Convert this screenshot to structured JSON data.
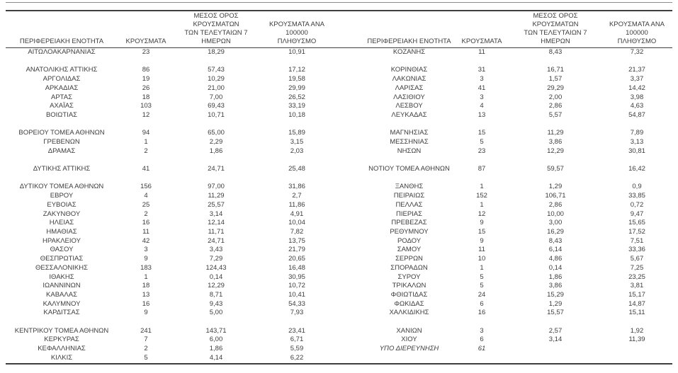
{
  "document": {
    "language": "el",
    "kind": "regional-cases-report-table"
  },
  "colors": {
    "text": "#3d3d3d",
    "rule": "#3f3f3f",
    "rule_light": "#8c8c8c",
    "background": "#ffffff"
  },
  "table": {
    "headers": {
      "region": "ΠΕΡΙΦΕΡΕΙΑΚΗ ΕΝΟΤΗΤΑ",
      "cases": "ΚΡΟΥΣΜΑΤΑ",
      "avg7": "ΜΕΣΟΣ ΟΡΟΣ ΚΡΟΥΣΜΑΤΩΝ\nΤΩΝ ΤΕΛΕΥΤΑΙΩΝ 7\nΗΜΕΡΩΝ",
      "per100k": "ΚΡΟΥΣΜΑΤΑ ΑΝΑ 100000\nΠΛΗΘΥΣΜΟ"
    },
    "rows": [
      [
        "ΑΙΤΩΛΟΑΚΑΡΝΑΝΙΑΣ",
        "23",
        "18,29",
        "10,91",
        "ΚΟΖΑΝΗΣ",
        "11",
        "8,43",
        "7,32"
      ],
      [
        "",
        "",
        "",
        "",
        "",
        "",
        "",
        ""
      ],
      [
        "ΑΝΑΤΟΛΙΚΗΣ ΑΤΤΙΚΗΣ",
        "86",
        "57,43",
        "17,12",
        "ΚΟΡΙΝΘΙΑΣ",
        "31",
        "16,71",
        "21,37"
      ],
      [
        "ΑΡΓΟΛΙΔΑΣ",
        "19",
        "10,29",
        "19,58",
        "ΛΑΚΩΝΙΑΣ",
        "3",
        "1,57",
        "3,37"
      ],
      [
        "ΑΡΚΑΔΙΑΣ",
        "26",
        "21,00",
        "29,99",
        "ΛΑΡΙΣΑΣ",
        "41",
        "29,29",
        "14,42"
      ],
      [
        "ΑΡΤΑΣ",
        "18",
        "7,00",
        "26,52",
        "ΛΑΣΙΘΙΟΥ",
        "3",
        "2,00",
        "3,98"
      ],
      [
        "ΑΧΑΪΑΣ",
        "103",
        "69,43",
        "33,19",
        "ΛΕΣΒΟΥ",
        "4",
        "2,86",
        "4,63"
      ],
      [
        "ΒΟΙΩΤΙΑΣ",
        "12",
        "10,71",
        "10,18",
        "ΛΕΥΚΑΔΑΣ",
        "13",
        "5,57",
        "54,87"
      ],
      [
        "",
        "",
        "",
        "",
        "",
        "",
        "",
        ""
      ],
      [
        "ΒΟΡΕΙΟΥ ΤΟΜΕΑ ΑΘΗΝΩΝ",
        "94",
        "65,00",
        "15,89",
        "ΜΑΓΝΗΣΙΑΣ",
        "15",
        "11,29",
        "7,89"
      ],
      [
        "ΓΡΕΒΕΝΩΝ",
        "1",
        "2,29",
        "3,15",
        "ΜΕΣΣΗΝΙΑΣ",
        "5",
        "3,86",
        "3,13"
      ],
      [
        "ΔΡΑΜΑΣ",
        "2",
        "1,86",
        "2,03",
        "ΝΗΣΩΝ",
        "23",
        "12,29",
        "30,81"
      ],
      [
        "",
        "",
        "",
        "",
        "",
        "",
        "",
        ""
      ],
      [
        "ΔΥΤΙΚΗΣ ΑΤΤΙΚΗΣ",
        "41",
        "24,71",
        "25,48",
        "ΝΟΤΙΟΥ ΤΟΜΕΑ ΑΘΗΝΩΝ",
        "87",
        "59,57",
        "16,42"
      ],
      [
        "",
        "",
        "",
        "",
        "",
        "",
        "",
        ""
      ],
      [
        "ΔΥΤΙΚΟΥ ΤΟΜΕΑ ΑΘΗΝΩΝ",
        "156",
        "97,00",
        "31,86",
        "ΞΑΝΘΗΣ",
        "1",
        "1,29",
        "0,9"
      ],
      [
        "ΕΒΡΟΥ",
        "4",
        "11,29",
        "2,7",
        "ΠΕΙΡΑΙΩΣ",
        "152",
        "106,71",
        "33,85"
      ],
      [
        "ΕΥΒΟΙΑΣ",
        "25",
        "25,57",
        "11,86",
        "ΠΕΛΛΑΣ",
        "1",
        "2,86",
        "0,72"
      ],
      [
        "ΖΑΚΥΝΘΟΥ",
        "2",
        "3,14",
        "4,91",
        "ΠΙΕΡΙΑΣ",
        "12",
        "10,00",
        "9,47"
      ],
      [
        "ΗΛΕΙΑΣ",
        "16",
        "12,14",
        "10,04",
        "ΠΡΕΒΕΖΑΣ",
        "9",
        "3,00",
        "15,65"
      ],
      [
        "ΗΜΑΘΙΑΣ",
        "11",
        "11,71",
        "7,82",
        "ΡΕΘΥΜΝΟΥ",
        "15",
        "16,29",
        "17,52"
      ],
      [
        "ΗΡΑΚΛΕΙΟΥ",
        "42",
        "24,71",
        "13,75",
        "ΡΟΔΟΥ",
        "9",
        "8,43",
        "7,51"
      ],
      [
        "ΘΑΣΟΥ",
        "3",
        "3,43",
        "21,79",
        "ΣΑΜΟΥ",
        "11",
        "6,14",
        "33,36"
      ],
      [
        "ΘΕΣΠΡΩΤΙΑΣ",
        "9",
        "7,29",
        "20,65",
        "ΣΕΡΡΩΝ",
        "10",
        "4,86",
        "5,67"
      ],
      [
        "ΘΕΣΣΑΛΟΝΙΚΗΣ",
        "183",
        "124,43",
        "16,48",
        "ΣΠΟΡΑΔΩΝ",
        "1",
        "0,14",
        "7,25"
      ],
      [
        "ΙΘΑΚΗΣ",
        "1",
        "0,14",
        "30,95",
        "ΣΥΡΟΥ",
        "5",
        "1,86",
        "23,25"
      ],
      [
        "ΙΩΑΝΝΙΝΩΝ",
        "18",
        "12,29",
        "10,72",
        "ΤΡΙΚΑΛΩΝ",
        "5",
        "3,86",
        "3,81"
      ],
      [
        "ΚΑΒΑΛΑΣ",
        "13",
        "8,71",
        "10,41",
        "ΦΘΙΩΤΙΔΑΣ",
        "24",
        "15,29",
        "15,17"
      ],
      [
        "ΚΑΛΥΜΝΟΥ",
        "16",
        "9,43",
        "54,33",
        "ΦΩΚΙΔΑΣ",
        "6",
        "1,29",
        "14,87"
      ],
      [
        "ΚΑΡΔΙΤΣΑΣ",
        "9",
        "5,00",
        "7,93",
        "ΧΑΛΚΙΔΙΚΗΣ",
        "16",
        "15,57",
        "15,11"
      ],
      [
        "",
        "",
        "",
        "",
        "",
        "",
        "",
        ""
      ],
      [
        "ΚΕΝΤΡΙΚΟΥ ΤΟΜΕΑ ΑΘΗΝΩΝ",
        "241",
        "143,71",
        "23,41",
        "ΧΑΝΙΩΝ",
        "3",
        "2,57",
        "1,92"
      ],
      [
        "ΚΕΡΚΥΡΑΣ",
        "7",
        "6,00",
        "6,71",
        "ΧΙΟΥ",
        "6",
        "3,14",
        "11,39"
      ],
      [
        "ΚΕΦΑΛΛΗΝΙΑΣ",
        "2",
        "1,86",
        "5,59",
        "ΥΠΟ ΔΙΕΡΕΥΝΗΣΗ",
        "61",
        "",
        ""
      ],
      [
        "ΚΙΛΚΙΣ",
        "5",
        "4,14",
        "6,22",
        "",
        "",
        "",
        ""
      ]
    ],
    "italic_cells": [
      [
        33,
        4
      ],
      [
        33,
        5
      ]
    ]
  }
}
